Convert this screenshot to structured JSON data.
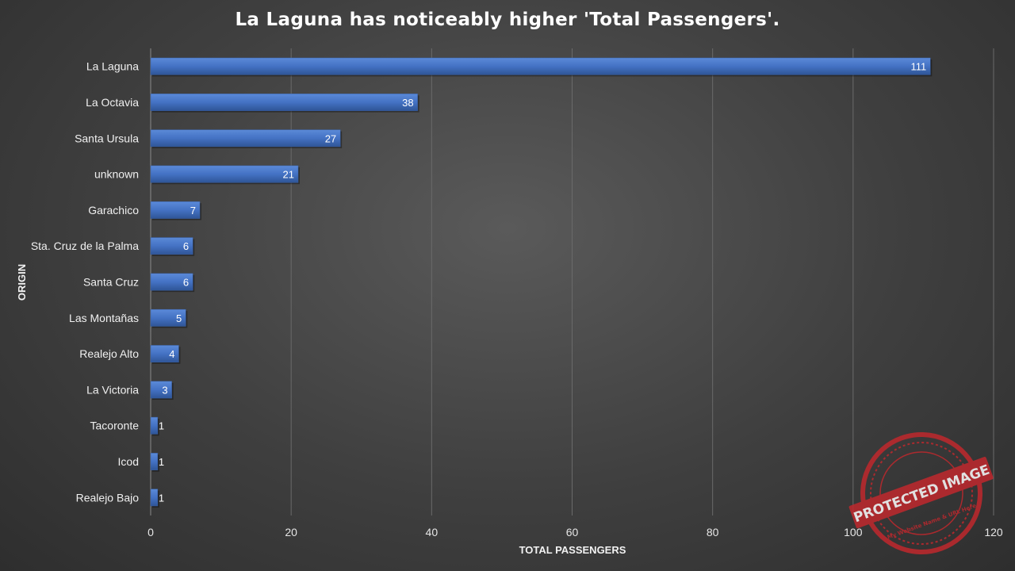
{
  "chart_data": {
    "type": "bar",
    "orientation": "horizontal",
    "title": "La Laguna has noticeably higher 'Total Passengers'.",
    "xlabel": "TOTAL PASSENGERS",
    "ylabel": "ORIGIN",
    "xlim": [
      0,
      120
    ],
    "xticks": [
      0,
      20,
      40,
      60,
      80,
      100,
      120
    ],
    "grid": true,
    "categories": [
      "La Laguna",
      "La Octavia",
      "Santa Ursula",
      "unknown",
      "Garachico",
      "Sta. Cruz de la Palma",
      "Santa Cruz",
      "Las Montañas",
      "Realejo Alto",
      "La Victoria",
      "Tacoronte",
      "Icod",
      "Realejo Bajo"
    ],
    "values": [
      111,
      38,
      27,
      21,
      7,
      6,
      6,
      5,
      4,
      3,
      1,
      1,
      1
    ],
    "bar_color": "#4472C4"
  },
  "watermark": {
    "text": "PROTECTED IMAGE",
    "subtext": "My Website Name & URL Here",
    "color": "#c0282d"
  }
}
